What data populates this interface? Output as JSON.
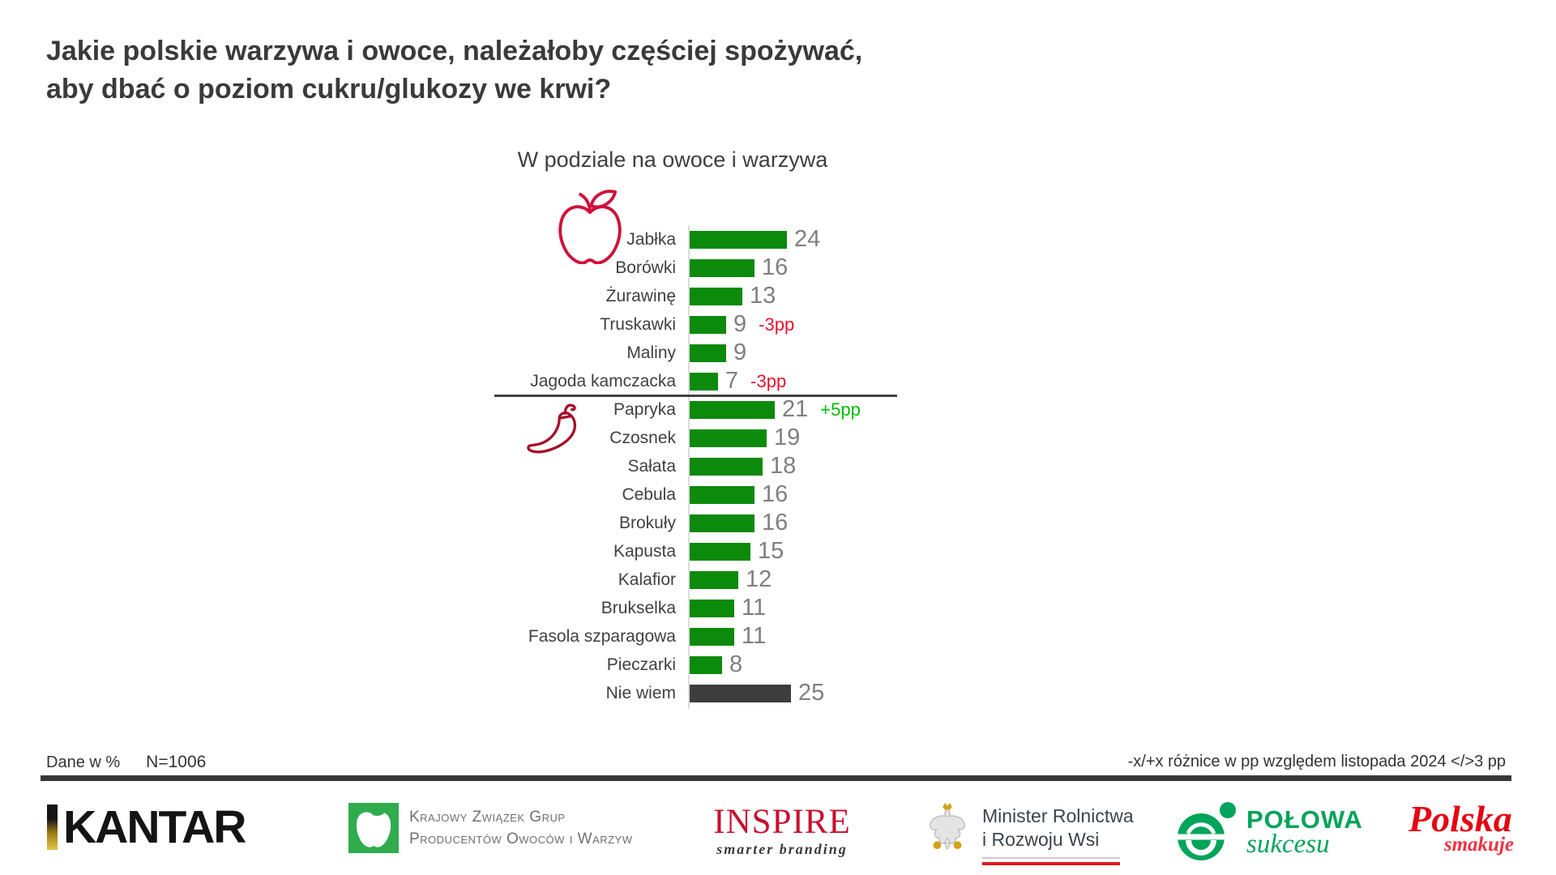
{
  "title": {
    "line1": "Jakie polskie warzywa i owoce, należałoby częściej spożywać,",
    "line2": "aby dbać o poziom cukru/glukozy we krwi?"
  },
  "subtitle": "W podziale na owoce i warzywa",
  "chart_data": {
    "type": "bar",
    "orientation": "horizontal",
    "unit": "%",
    "bar_color": "#0b8a0b",
    "neutral_bar_color": "#3d3d3d",
    "delta_pos_color": "#00bd00",
    "delta_neg_color": "#e8112d",
    "xlim": [
      0,
      30
    ],
    "group_icons": {
      "owoce": "apple-icon",
      "warzywa": "pepper-icon"
    },
    "items": [
      {
        "label": "Jabłka",
        "value": 24,
        "delta": "",
        "group": "owoce"
      },
      {
        "label": "Borówki",
        "value": 16,
        "delta": "",
        "group": "owoce"
      },
      {
        "label": "Żurawinę",
        "value": 13,
        "delta": "",
        "group": "owoce"
      },
      {
        "label": "Truskawki",
        "value": 9,
        "delta": "-3pp",
        "group": "owoce"
      },
      {
        "label": "Maliny",
        "value": 9,
        "delta": "",
        "group": "owoce"
      },
      {
        "label": "Jagoda kamczacka",
        "value": 7,
        "delta": "-3pp",
        "group": "owoce"
      },
      {
        "label": "Papryka",
        "value": 21,
        "delta": "+5pp",
        "group": "warzywa"
      },
      {
        "label": "Czosnek",
        "value": 19,
        "delta": "",
        "group": "warzywa"
      },
      {
        "label": "Sałata",
        "value": 18,
        "delta": "",
        "group": "warzywa"
      },
      {
        "label": "Cebula",
        "value": 16,
        "delta": "",
        "group": "warzywa"
      },
      {
        "label": "Brokuły",
        "value": 16,
        "delta": "",
        "group": "warzywa"
      },
      {
        "label": "Kapusta",
        "value": 15,
        "delta": "",
        "group": "warzywa"
      },
      {
        "label": "Kalafior",
        "value": 12,
        "delta": "",
        "group": "warzywa"
      },
      {
        "label": "Brukselka",
        "value": 11,
        "delta": "",
        "group": "warzywa"
      },
      {
        "label": "Fasola szparagowa",
        "value": 11,
        "delta": "",
        "group": "warzywa"
      },
      {
        "label": "Pieczarki",
        "value": 8,
        "delta": "",
        "group": "warzywa"
      },
      {
        "label": "Nie wiem",
        "value": 25,
        "delta": "",
        "group": "none",
        "neutral": true
      }
    ],
    "divider_after_index": 5
  },
  "footer": {
    "left1": "Dane w %",
    "left2": "N=1006",
    "right": "-x/+x różnice w pp względem listopada 2024 </>3 pp"
  },
  "logos": {
    "kantar": {
      "text": "KANTAR"
    },
    "kzg": {
      "line1": "Krajowy Związek Grup",
      "line2": "Producentów Owoców i Warzyw"
    },
    "inspire": {
      "text": "INSPIRE",
      "tagline": "smarter branding"
    },
    "minister": {
      "line1": "Minister Rolnictwa",
      "line2": "i Rozwoju Wsi"
    },
    "polowa": {
      "line1": "POŁOWA",
      "line2": "sukcesu"
    },
    "polska": {
      "line1": "Polska",
      "line2": "smakuje"
    }
  }
}
